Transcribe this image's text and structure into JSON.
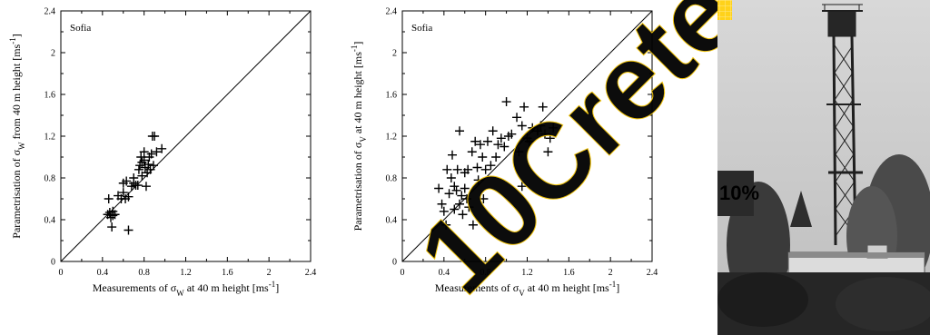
{
  "chart_data": [
    {
      "type": "scatter",
      "panel_label": "Sofia",
      "xlabel": "Measurements of  σW at 40 m height [ms-1]",
      "ylabel": "Parametrisation of σW from 40 m height [ms-1]",
      "xlim": [
        0,
        2.4
      ],
      "ylim": [
        0,
        2.4
      ],
      "xticks": [
        "0",
        "0.4",
        "0.8",
        "1.2",
        "1.6",
        "2",
        "2.4"
      ],
      "yticks": [
        "0",
        "0.4",
        "0.8",
        "1.2",
        "1.6",
        "2",
        "2.4"
      ],
      "marker": "plus",
      "reference_line": "1:1",
      "points": [
        [
          0.45,
          0.45
        ],
        [
          0.47,
          0.47
        ],
        [
          0.48,
          0.42
        ],
        [
          0.5,
          0.44
        ],
        [
          0.5,
          0.48
        ],
        [
          0.52,
          0.45
        ],
        [
          0.46,
          0.6
        ],
        [
          0.49,
          0.33
        ],
        [
          0.55,
          0.63
        ],
        [
          0.58,
          0.6
        ],
        [
          0.6,
          0.66
        ],
        [
          0.6,
          0.75
        ],
        [
          0.62,
          0.6
        ],
        [
          0.63,
          0.77
        ],
        [
          0.65,
          0.62
        ],
        [
          0.65,
          0.3
        ],
        [
          0.68,
          0.72
        ],
        [
          0.7,
          0.75
        ],
        [
          0.7,
          0.8
        ],
        [
          0.72,
          0.73
        ],
        [
          0.74,
          0.73
        ],
        [
          0.75,
          0.88
        ],
        [
          0.76,
          0.92
        ],
        [
          0.77,
          1.0
        ],
        [
          0.78,
          0.95
        ],
        [
          0.78,
          0.82
        ],
        [
          0.8,
          1.05
        ],
        [
          0.8,
          0.97
        ],
        [
          0.81,
          0.9
        ],
        [
          0.82,
          0.72
        ],
        [
          0.83,
          0.85
        ],
        [
          0.84,
          0.93
        ],
        [
          0.85,
          1.0
        ],
        [
          0.86,
          0.88
        ],
        [
          0.87,
          1.03
        ],
        [
          0.88,
          1.2
        ],
        [
          0.89,
          0.92
        ],
        [
          0.9,
          1.2
        ],
        [
          0.92,
          1.05
        ],
        [
          0.97,
          1.08
        ]
      ]
    },
    {
      "type": "scatter",
      "panel_label": "Sofia",
      "xlabel": "Measurements of  σV at 40 m height [ms-1]",
      "ylabel": "Parametrisation of σV at 40 m height [ms-1]",
      "xlim": [
        0,
        2.4
      ],
      "ylim": [
        0,
        2.4
      ],
      "xticks": [
        "0",
        "0.4",
        "0.8",
        "1.2",
        "1.6",
        "2",
        "2.4"
      ],
      "yticks": [
        "0",
        "0.4",
        "0.8",
        "1.2",
        "1.6",
        "2",
        "2.4"
      ],
      "marker": "plus",
      "reference_line": "1:1",
      "points": [
        [
          0.35,
          0.7
        ],
        [
          0.38,
          0.55
        ],
        [
          0.4,
          0.48
        ],
        [
          0.42,
          0.35
        ],
        [
          0.43,
          0.88
        ],
        [
          0.45,
          0.65
        ],
        [
          0.47,
          0.8
        ],
        [
          0.5,
          0.5
        ],
        [
          0.5,
          0.72
        ],
        [
          0.52,
          0.68
        ],
        [
          0.53,
          0.88
        ],
        [
          0.55,
          0.55
        ],
        [
          0.57,
          0.63
        ],
        [
          0.58,
          0.45
        ],
        [
          0.6,
          0.7
        ],
        [
          0.6,
          0.85
        ],
        [
          0.62,
          0.6
        ],
        [
          0.63,
          0.88
        ],
        [
          0.64,
          0.52
        ],
        [
          0.55,
          1.25
        ],
        [
          0.67,
          1.05
        ],
        [
          0.7,
          1.15
        ],
        [
          0.72,
          0.9
        ],
        [
          0.73,
          0.78
        ],
        [
          0.75,
          1.12
        ],
        [
          0.77,
          1.0
        ],
        [
          0.8,
          0.88
        ],
        [
          0.82,
          1.15
        ],
        [
          0.85,
          0.92
        ],
        [
          0.87,
          1.25
        ],
        [
          0.9,
          1.0
        ],
        [
          0.92,
          1.12
        ],
        [
          0.95,
          1.18
        ],
        [
          0.98,
          1.1
        ],
        [
          1.0,
          1.53
        ],
        [
          1.02,
          1.2
        ],
        [
          1.05,
          1.22
        ],
        [
          1.1,
          1.38
        ],
        [
          1.12,
          1.05
        ],
        [
          1.15,
          1.3
        ],
        [
          1.17,
          1.48
        ],
        [
          1.15,
          0.72
        ],
        [
          1.2,
          1.18
        ],
        [
          1.22,
          1.15
        ],
        [
          1.25,
          1.28
        ],
        [
          1.3,
          1.25
        ],
        [
          1.33,
          1.3
        ],
        [
          1.35,
          1.48
        ],
        [
          1.37,
          1.22
        ],
        [
          1.4,
          1.05
        ],
        [
          1.42,
          1.18
        ],
        [
          1.45,
          1.28
        ],
        [
          0.48,
          1.02
        ],
        [
          0.68,
          0.35
        ],
        [
          0.78,
          0.6
        ]
      ]
    }
  ],
  "watermark": {
    "text": "10Crete",
    "color": "#ffd21a"
  },
  "photo": {
    "sign_text": "10%"
  }
}
